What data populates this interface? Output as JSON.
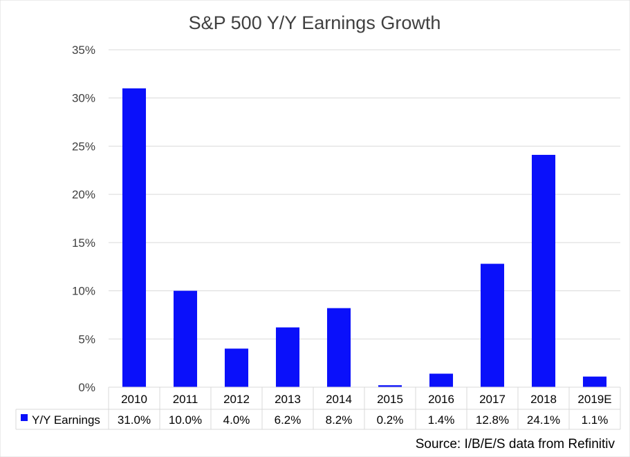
{
  "chart_data": {
    "type": "bar",
    "title": "S&P 500 Y/Y Earnings Growth",
    "categories": [
      "2010",
      "2011",
      "2012",
      "2013",
      "2014",
      "2015",
      "2016",
      "2017",
      "2018",
      "2019E"
    ],
    "series": [
      {
        "name": "Y/Y Earnings",
        "values": [
          31.0,
          10.0,
          4.0,
          6.2,
          8.2,
          0.2,
          1.4,
          12.8,
          24.1,
          1.1
        ],
        "labels": [
          "31.0%",
          "10.0%",
          "4.0%",
          "6.2%",
          "8.2%",
          "0.2%",
          "1.4%",
          "12.8%",
          "24.1%",
          "1.1%"
        ],
        "color": "#0a10fa"
      }
    ],
    "ylim": [
      0,
      35
    ],
    "yticks": [
      0,
      5,
      10,
      15,
      20,
      25,
      30,
      35
    ],
    "ytick_labels": [
      "0%",
      "5%",
      "10%",
      "15%",
      "20%",
      "25%",
      "30%",
      "35%"
    ],
    "xlabel": "",
    "ylabel": "",
    "grid": true,
    "legend": "data-table",
    "source": "Source: I/B/E/S data from Refinitiv"
  }
}
